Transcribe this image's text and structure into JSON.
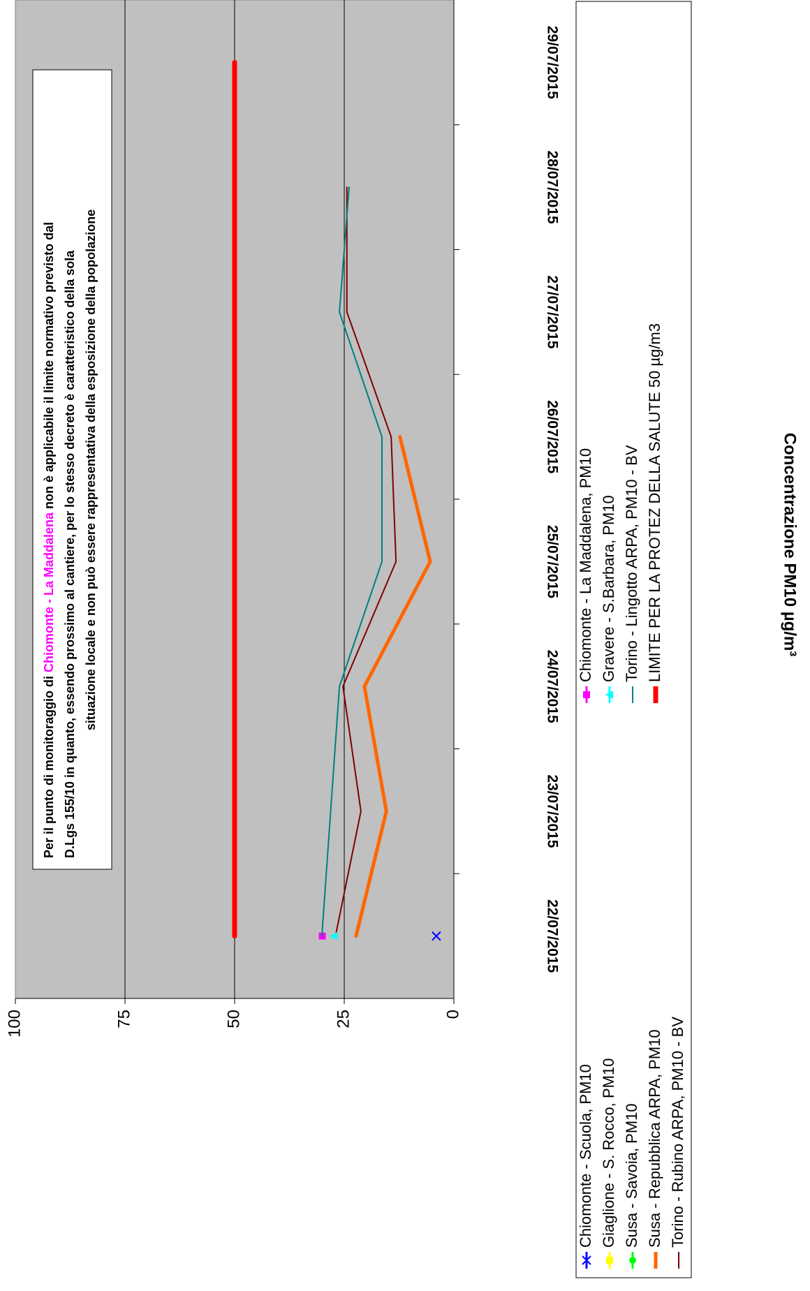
{
  "chart_data": {
    "type": "line",
    "ylabel": "Concentrazione PM10 µg/m³",
    "annotation": {
      "line1": [
        "Per il punto di monitoraggio di",
        "Chiomonte - La Maddalena",
        "non è applicabile il limite normativo previsto dal"
      ],
      "line2": "D.Lgs 155/10 in quanto, essendo prossimo al cantiere, per lo stesso decreto è caratteristico della sola",
      "line3": "situazione locale e non può essere rappresentativa della esposizione della popolazione",
      "highlight_color": "#ff00ff"
    },
    "categories": [
      "22/07/2015",
      "23/07/2015",
      "24/07/2015",
      "25/07/2015",
      "26/07/2015",
      "27/07/2015",
      "28/07/2015",
      "29/07/2015"
    ],
    "ylim": [
      0,
      100
    ],
    "yticks": [
      0,
      25,
      50,
      75,
      100
    ],
    "grid": true,
    "background": "#c0c0c0",
    "series": [
      {
        "name": "Chiomonte - Scuola, PM10",
        "color": "#0000ff",
        "marker": "x",
        "values": [
          4,
          null,
          null,
          null,
          null,
          null,
          null,
          null
        ]
      },
      {
        "name": "Giaglione - S. Rocco, PM10",
        "color": "#ffff00",
        "marker": "square",
        "values": [
          null,
          null,
          null,
          null,
          null,
          null,
          null,
          null
        ]
      },
      {
        "name": "Susa - Savoia, PM10",
        "color": "#00ff00",
        "marker": "circle",
        "values": [
          null,
          null,
          null,
          null,
          null,
          null,
          null,
          null
        ]
      },
      {
        "name": "Susa - Repubblica ARPA, PM10",
        "color": "#ff6600",
        "width": 5,
        "values": [
          22.3,
          15.4,
          20.4,
          5.4,
          12.3,
          null,
          null,
          null
        ]
      },
      {
        "name": "Torino - Rubino ARPA, PM10 - BV",
        "color": "#800000",
        "width": 2,
        "values": [
          27,
          21.2,
          25.3,
          13.2,
          14.3,
          24.4,
          24.4,
          null
        ]
      },
      {
        "name": "Chiomonte - La Maddalena, PM10",
        "color": "#ff00ff",
        "marker": "square",
        "values": [
          30,
          null,
          null,
          null,
          null,
          null,
          null,
          null
        ]
      },
      {
        "name": "Gravere - S.Barbara, PM10",
        "color": "#00ffff",
        "marker": "triangle",
        "values": [
          27.4,
          null,
          null,
          null,
          null,
          null,
          null,
          null
        ]
      },
      {
        "name": "Torino - Lingotto ARPA, PM10 - BV",
        "color": "#008080",
        "width": 2,
        "values": [
          30.1,
          28.1,
          26.1,
          16.4,
          16.4,
          26.1,
          23.9,
          null
        ]
      },
      {
        "name": "LIMITE PER LA PROTEZ DELLA SALUTE 50 µg/m3",
        "color": "#ff0000",
        "width": 7,
        "values": [
          50,
          50,
          50,
          50,
          50,
          50,
          50,
          50
        ]
      }
    ]
  }
}
